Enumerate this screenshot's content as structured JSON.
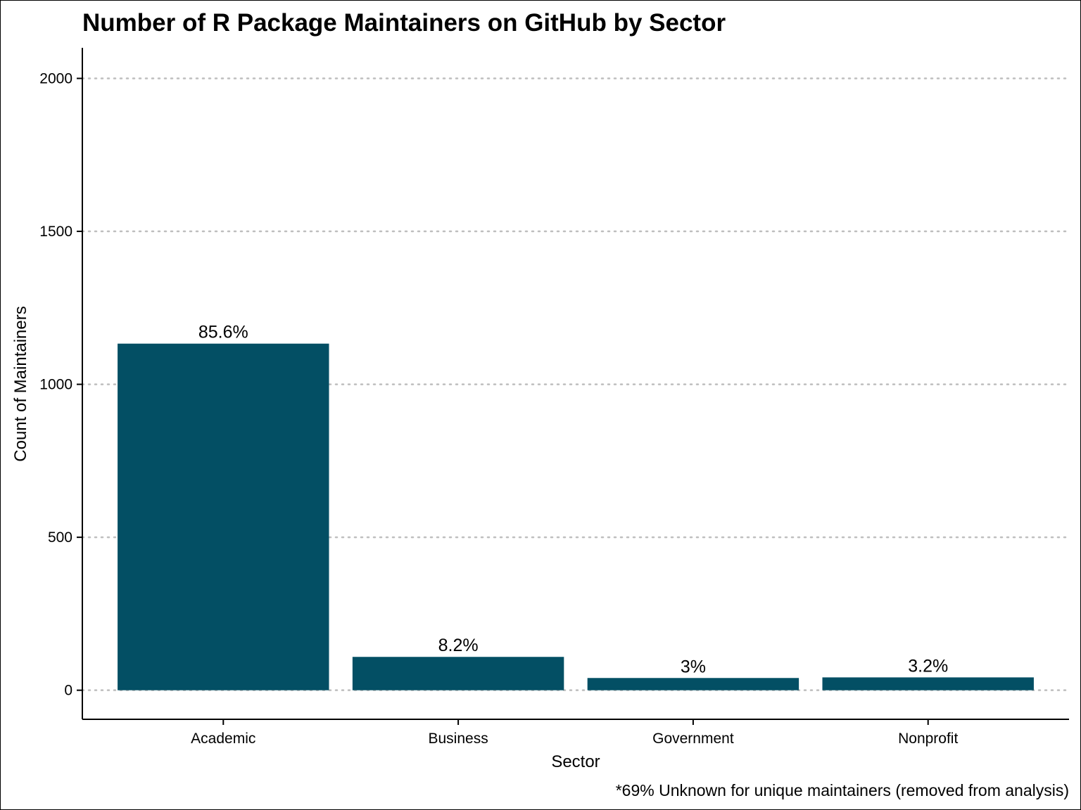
{
  "chart_data": {
    "type": "bar",
    "title": "Number of R Package Maintainers on GitHub by Sector",
    "xlabel": "Sector",
    "ylabel": "Count of Maintainers",
    "caption": "*69% Unknown for unique maintainers (removed from analysis)",
    "categories": [
      "Academic",
      "Business",
      "Government",
      "Nonprofit"
    ],
    "values": [
      1133,
      109,
      40,
      42
    ],
    "data_labels": [
      "85.6%",
      "8.2%",
      "3%",
      "3.2%"
    ],
    "ylim": [
      -95,
      2100
    ],
    "yticks": [
      0,
      500,
      1000,
      1500,
      2000
    ],
    "ytick_labels": [
      "0",
      "500",
      "1000",
      "1500",
      "2000"
    ],
    "grid": "horizontal-dotted",
    "legend": "none",
    "bar_color": "#034F64",
    "grid_color": "#BEBEBE"
  }
}
